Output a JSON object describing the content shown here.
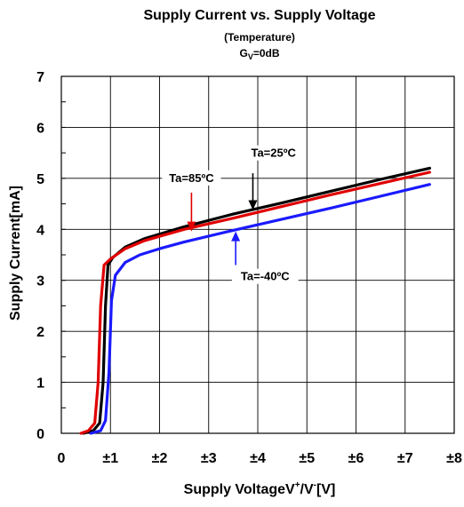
{
  "chart_data": {
    "type": "line",
    "title": "Supply Current vs. Supply Voltage",
    "subtitle": "(Temperature)",
    "subtitle2": {
      "main": "G",
      "sub": "V",
      "rest": "=0dB"
    },
    "xlabel": {
      "a": "Supply Voltage",
      "b": "V",
      "sup1": "+",
      "c": "/V",
      "sup2": "-",
      "d": "[V]"
    },
    "ylabel": "Supply Current[mA]",
    "xlim": [
      0,
      8
    ],
    "ylim": [
      0,
      7
    ],
    "x_ticks": [
      {
        "v": 0,
        "label": "0"
      },
      {
        "v": 1,
        "label": "±1"
      },
      {
        "v": 2,
        "label": "±2"
      },
      {
        "v": 3,
        "label": "±3"
      },
      {
        "v": 4,
        "label": "±4"
      },
      {
        "v": 5,
        "label": "±5"
      },
      {
        "v": 6,
        "label": "±6"
      },
      {
        "v": 7,
        "label": "±7"
      },
      {
        "v": 8,
        "label": "±8"
      }
    ],
    "y_ticks": [
      {
        "v": 0,
        "label": "0"
      },
      {
        "v": 1,
        "label": "1"
      },
      {
        "v": 2,
        "label": "2"
      },
      {
        "v": 3,
        "label": "3"
      },
      {
        "v": 4,
        "label": "4"
      },
      {
        "v": 5,
        "label": "5"
      },
      {
        "v": 6,
        "label": "6"
      },
      {
        "v": 7,
        "label": "7"
      }
    ],
    "grid": true,
    "series": [
      {
        "name": "Ta=25ºC",
        "color": "#000000",
        "points": [
          [
            0.45,
            0.0
          ],
          [
            0.65,
            0.05
          ],
          [
            0.78,
            0.2
          ],
          [
            0.85,
            1.0
          ],
          [
            0.9,
            2.5
          ],
          [
            0.95,
            3.3
          ],
          [
            1.05,
            3.45
          ],
          [
            1.3,
            3.65
          ],
          [
            1.7,
            3.82
          ],
          [
            2.5,
            4.05
          ],
          [
            3.5,
            4.3
          ],
          [
            4.5,
            4.52
          ],
          [
            5.5,
            4.75
          ],
          [
            6.5,
            4.98
          ],
          [
            7.5,
            5.2
          ]
        ]
      },
      {
        "name": "Ta=85ºC",
        "color": "#e00000",
        "points": [
          [
            0.4,
            0.0
          ],
          [
            0.55,
            0.05
          ],
          [
            0.68,
            0.2
          ],
          [
            0.75,
            1.0
          ],
          [
            0.8,
            2.5
          ],
          [
            0.87,
            3.3
          ],
          [
            1.0,
            3.42
          ],
          [
            1.3,
            3.62
          ],
          [
            1.7,
            3.78
          ],
          [
            2.5,
            4.0
          ],
          [
            3.5,
            4.22
          ],
          [
            4.5,
            4.45
          ],
          [
            5.5,
            4.68
          ],
          [
            6.5,
            4.9
          ],
          [
            7.5,
            5.12
          ]
        ]
      },
      {
        "name": "Ta=-40ºC",
        "color": "#1a1aff",
        "points": [
          [
            0.6,
            0.0
          ],
          [
            0.8,
            0.05
          ],
          [
            0.9,
            0.25
          ],
          [
            0.97,
            1.2
          ],
          [
            1.02,
            2.6
          ],
          [
            1.1,
            3.1
          ],
          [
            1.3,
            3.35
          ],
          [
            1.6,
            3.5
          ],
          [
            2.0,
            3.62
          ],
          [
            2.5,
            3.75
          ],
          [
            3.5,
            3.98
          ],
          [
            4.5,
            4.2
          ],
          [
            5.5,
            4.42
          ],
          [
            6.5,
            4.65
          ],
          [
            7.5,
            4.88
          ]
        ]
      }
    ],
    "annotations": [
      {
        "text": "Ta=25ºC",
        "arrow_color": "#000000",
        "label_at": [
          4.32,
          5.42
        ],
        "arrow_from": [
          3.9,
          5.1
        ],
        "arrow_to": [
          3.9,
          4.38
        ]
      },
      {
        "text": "Ta=85ºC",
        "arrow_color": "#e00000",
        "label_at": [
          2.65,
          4.93
        ],
        "arrow_from": [
          2.65,
          4.72
        ],
        "arrow_to": [
          2.65,
          3.96
        ]
      },
      {
        "text": "Ta=-40ºC",
        "arrow_color": "#1a1aff",
        "label_at": [
          4.15,
          3.0
        ],
        "arrow_from": [
          3.55,
          3.3
        ],
        "arrow_to": [
          3.55,
          3.96
        ]
      }
    ]
  }
}
